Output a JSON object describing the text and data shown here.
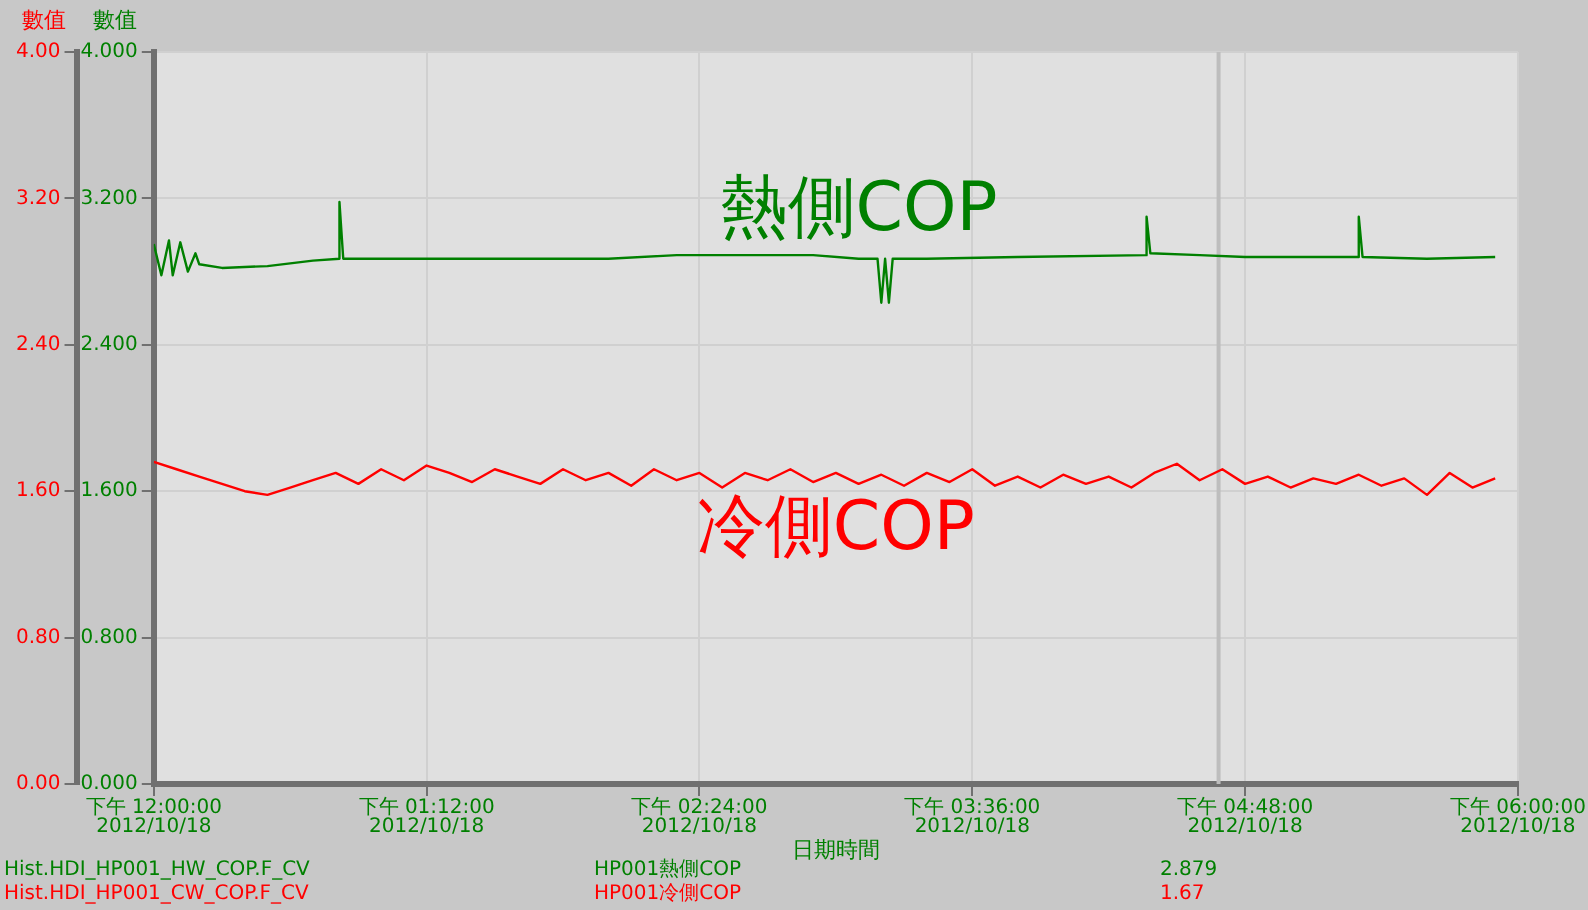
{
  "chart_data": {
    "type": "line",
    "xlabel": "日期時間",
    "ylabel": "數值",
    "y2label": "數值",
    "xlim": [
      "2012-10-18T12:00",
      "2012-10-18T18:00"
    ],
    "xticks": [
      {
        "value": "2012-10-18T12:00",
        "label": "下午 12:00:00\n2012/10/18"
      },
      {
        "value": "2012-10-18T13:12",
        "label": "下午 01:12:00\n2012/10/18"
      },
      {
        "value": "2012-10-18T14:24",
        "label": "下午 02:24:00\n2012/10/18"
      },
      {
        "value": "2012-10-18T15:36",
        "label": "下午 03:36:00\n2012/10/18"
      },
      {
        "value": "2012-10-18T16:48",
        "label": "下午 04:48:00\n2012/10/18"
      },
      {
        "value": "2012-10-18T18:00",
        "label": "下午 06:00:00\n2012/10/18"
      }
    ],
    "ylim": [
      0,
      4
    ],
    "yticks": [
      {
        "value": 0,
        "label": "0.00"
      },
      {
        "value": 0.8,
        "label": "0.80"
      },
      {
        "value": 1.6,
        "label": "1.60"
      },
      {
        "value": 2.4,
        "label": "2.40"
      },
      {
        "value": 3.2,
        "label": "3.20"
      },
      {
        "value": 4,
        "label": "4.00"
      }
    ],
    "y2lim": [
      0,
      4
    ],
    "y2ticks": [
      {
        "value": 0,
        "label": "0.000"
      },
      {
        "value": 0.8,
        "label": "0.800"
      },
      {
        "value": 1.6,
        "label": "1.600"
      },
      {
        "value": 2.4,
        "label": "2.400"
      },
      {
        "value": 3.2,
        "label": "3.200"
      },
      {
        "value": 4,
        "label": "4.000"
      }
    ],
    "grid": true,
    "legend": false,
    "marker": "none",
    "line_style": "solid",
    "ref_lines": [
      {
        "axis": "x",
        "value": "2012-10-18T16:41",
        "label": null,
        "color": "#bdbdbd"
      }
    ],
    "series": [
      {
        "name": "熱側COP",
        "color": "#008000",
        "axis": "y2",
        "x": [
          "2012-10-18T12:00",
          "2012-10-18T12:02",
          "2012-10-18T12:04",
          "2012-10-18T12:05",
          "2012-10-18T12:07",
          "2012-10-18T12:09",
          "2012-10-18T12:11",
          "2012-10-18T12:12",
          "2012-10-18T12:18",
          "2012-10-18T12:30",
          "2012-10-18T12:42",
          "2012-10-18T12:49",
          "2012-10-18T12:49",
          "2012-10-18T12:50",
          "2012-10-18T13:30",
          "2012-10-18T14:00",
          "2012-10-18T14:18",
          "2012-10-18T14:54",
          "2012-10-18T15:06",
          "2012-10-18T15:11",
          "2012-10-18T15:12",
          "2012-10-18T15:13",
          "2012-10-18T15:14",
          "2012-10-18T15:15",
          "2012-10-18T15:24",
          "2012-10-18T15:48",
          "2012-10-18T16:22",
          "2012-10-18T16:22",
          "2012-10-18T16:23",
          "2012-10-18T16:36",
          "2012-10-18T16:48",
          "2012-10-18T17:18",
          "2012-10-18T17:18",
          "2012-10-18T17:19",
          "2012-10-18T17:36",
          "2012-10-18T17:54"
        ],
        "values": [
          2.95,
          2.78,
          2.97,
          2.78,
          2.96,
          2.8,
          2.9,
          2.84,
          2.82,
          2.83,
          2.86,
          2.87,
          3.18,
          2.87,
          2.87,
          2.87,
          2.89,
          2.89,
          2.87,
          2.87,
          2.63,
          2.87,
          2.63,
          2.87,
          2.87,
          2.88,
          2.89,
          3.1,
          2.9,
          2.89,
          2.88,
          2.88,
          3.1,
          2.88,
          2.87,
          2.88
        ]
      },
      {
        "name": "冷側COP",
        "color": "#ff0000",
        "axis": "y",
        "x": [
          "2012-10-18T12:00",
          "2012-10-18T12:06",
          "2012-10-18T12:12",
          "2012-10-18T12:18",
          "2012-10-18T12:24",
          "2012-10-18T12:30",
          "2012-10-18T12:36",
          "2012-10-18T12:42",
          "2012-10-18T12:48",
          "2012-10-18T12:54",
          "2012-10-18T13:00",
          "2012-10-18T13:06",
          "2012-10-18T13:12",
          "2012-10-18T13:18",
          "2012-10-18T13:24",
          "2012-10-18T13:30",
          "2012-10-18T13:36",
          "2012-10-18T13:42",
          "2012-10-18T13:48",
          "2012-10-18T13:54",
          "2012-10-18T14:00",
          "2012-10-18T14:06",
          "2012-10-18T14:12",
          "2012-10-18T14:18",
          "2012-10-18T14:24",
          "2012-10-18T14:30",
          "2012-10-18T14:36",
          "2012-10-18T14:42",
          "2012-10-18T14:48",
          "2012-10-18T14:54",
          "2012-10-18T15:00",
          "2012-10-18T15:06",
          "2012-10-18T15:12",
          "2012-10-18T15:18",
          "2012-10-18T15:24",
          "2012-10-18T15:30",
          "2012-10-18T15:36",
          "2012-10-18T15:42",
          "2012-10-18T15:48",
          "2012-10-18T15:54",
          "2012-10-18T16:00",
          "2012-10-18T16:06",
          "2012-10-18T16:12",
          "2012-10-18T16:18",
          "2012-10-18T16:24",
          "2012-10-18T16:30",
          "2012-10-18T16:36",
          "2012-10-18T16:42",
          "2012-10-18T16:48",
          "2012-10-18T16:54",
          "2012-10-18T17:00",
          "2012-10-18T17:06",
          "2012-10-18T17:12",
          "2012-10-18T17:18",
          "2012-10-18T17:24",
          "2012-10-18T17:30",
          "2012-10-18T17:36",
          "2012-10-18T17:42",
          "2012-10-18T17:48",
          "2012-10-18T17:54"
        ],
        "values": [
          1.76,
          1.72,
          1.68,
          1.64,
          1.6,
          1.58,
          1.62,
          1.66,
          1.7,
          1.64,
          1.72,
          1.66,
          1.74,
          1.7,
          1.65,
          1.72,
          1.68,
          1.64,
          1.72,
          1.66,
          1.7,
          1.63,
          1.72,
          1.66,
          1.7,
          1.62,
          1.7,
          1.66,
          1.72,
          1.65,
          1.7,
          1.64,
          1.69,
          1.63,
          1.7,
          1.65,
          1.72,
          1.63,
          1.68,
          1.62,
          1.69,
          1.64,
          1.68,
          1.62,
          1.7,
          1.75,
          1.66,
          1.72,
          1.64,
          1.68,
          1.62,
          1.67,
          1.64,
          1.69,
          1.63,
          1.67,
          1.58,
          1.7,
          1.62,
          1.67
        ]
      }
    ],
    "annotations": [
      "Hist.HDI_HP001_HW_COP.F_CV",
      "HP001熱側COP",
      "2.879",
      "Hist.HDI_HP001_CW_COP.F_CV",
      "HP001冷側COP",
      "1.67"
    ]
  }
}
